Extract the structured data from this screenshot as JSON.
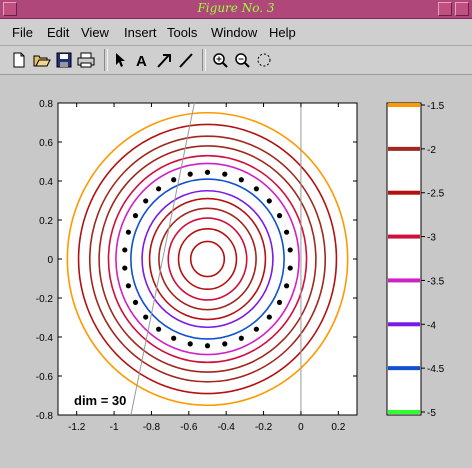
{
  "window": {
    "title": "Figure No. 3"
  },
  "menu": [
    "File",
    "Edit",
    "View",
    "Insert",
    "Tools",
    "Window",
    "Help"
  ],
  "toolbar": [
    "new-icon",
    "open-icon",
    "save-icon",
    "print-icon",
    "pointer-icon",
    "text-icon",
    "arrow-icon",
    "line-icon",
    "zoom-in-icon",
    "zoom-out-icon",
    "rotate-icon"
  ],
  "plot": {
    "annotation": "dim = 30",
    "x_ticks": [
      "-1.2",
      "-1",
      "-0.8",
      "-0.6",
      "-0.4",
      "-0.2",
      "0",
      "0.2"
    ],
    "y_ticks": [
      "0.8",
      "0.6",
      "0.4",
      "0.2",
      "0",
      "-0.2",
      "-0.4",
      "-0.6",
      "-0.8"
    ]
  },
  "colorbar": {
    "labels": [
      "-1.5",
      "-2",
      "-2.5",
      "-3",
      "-3.5",
      "-4",
      "-4.5",
      "-5"
    ],
    "colors": [
      "#ff9900",
      "#a0281e",
      "#b41010",
      "#d0103c",
      "#d020c8",
      "#7a1ae8",
      "#1050d0",
      "#30ff30"
    ]
  },
  "chart_data": {
    "type": "contour",
    "center": [
      -0.5,
      0
    ],
    "xlim": [
      -1.3,
      0.3
    ],
    "ylim": [
      -0.8,
      0.8
    ],
    "levels": [
      -1.5,
      -2,
      -2.5,
      -3,
      -3.5,
      -4,
      -4.5,
      -5
    ],
    "radii": [
      0.75,
      0.69,
      0.63,
      0.58,
      0.53,
      0.49,
      0.41,
      0.35,
      0.31,
      0.26,
      0.21,
      0.155,
      0.09
    ],
    "ring_colors": [
      "#ff9900",
      "#b41010",
      "#a0281e",
      "#a0281e",
      "#d0103c",
      "#d020c8",
      "#1050d0",
      "#7a1ae8",
      "#b41010",
      "#a0281e",
      "#d0103c",
      "#b41010",
      "#b41010"
    ],
    "eigenvalues": {
      "count": 30,
      "radius": 0.445,
      "center": [
        -0.5,
        0
      ]
    },
    "boundary_lines": [
      {
        "x": [
          -0.57,
          -0.91
        ],
        "y": [
          0.8,
          -0.8
        ]
      },
      {
        "x": [
          0.0,
          0.0
        ],
        "y": [
          0.8,
          -0.8
        ]
      }
    ],
    "colorbar_ticks": [
      -1.5,
      -2,
      -2.5,
      -3,
      -3.5,
      -4,
      -4.5,
      -5
    ]
  }
}
